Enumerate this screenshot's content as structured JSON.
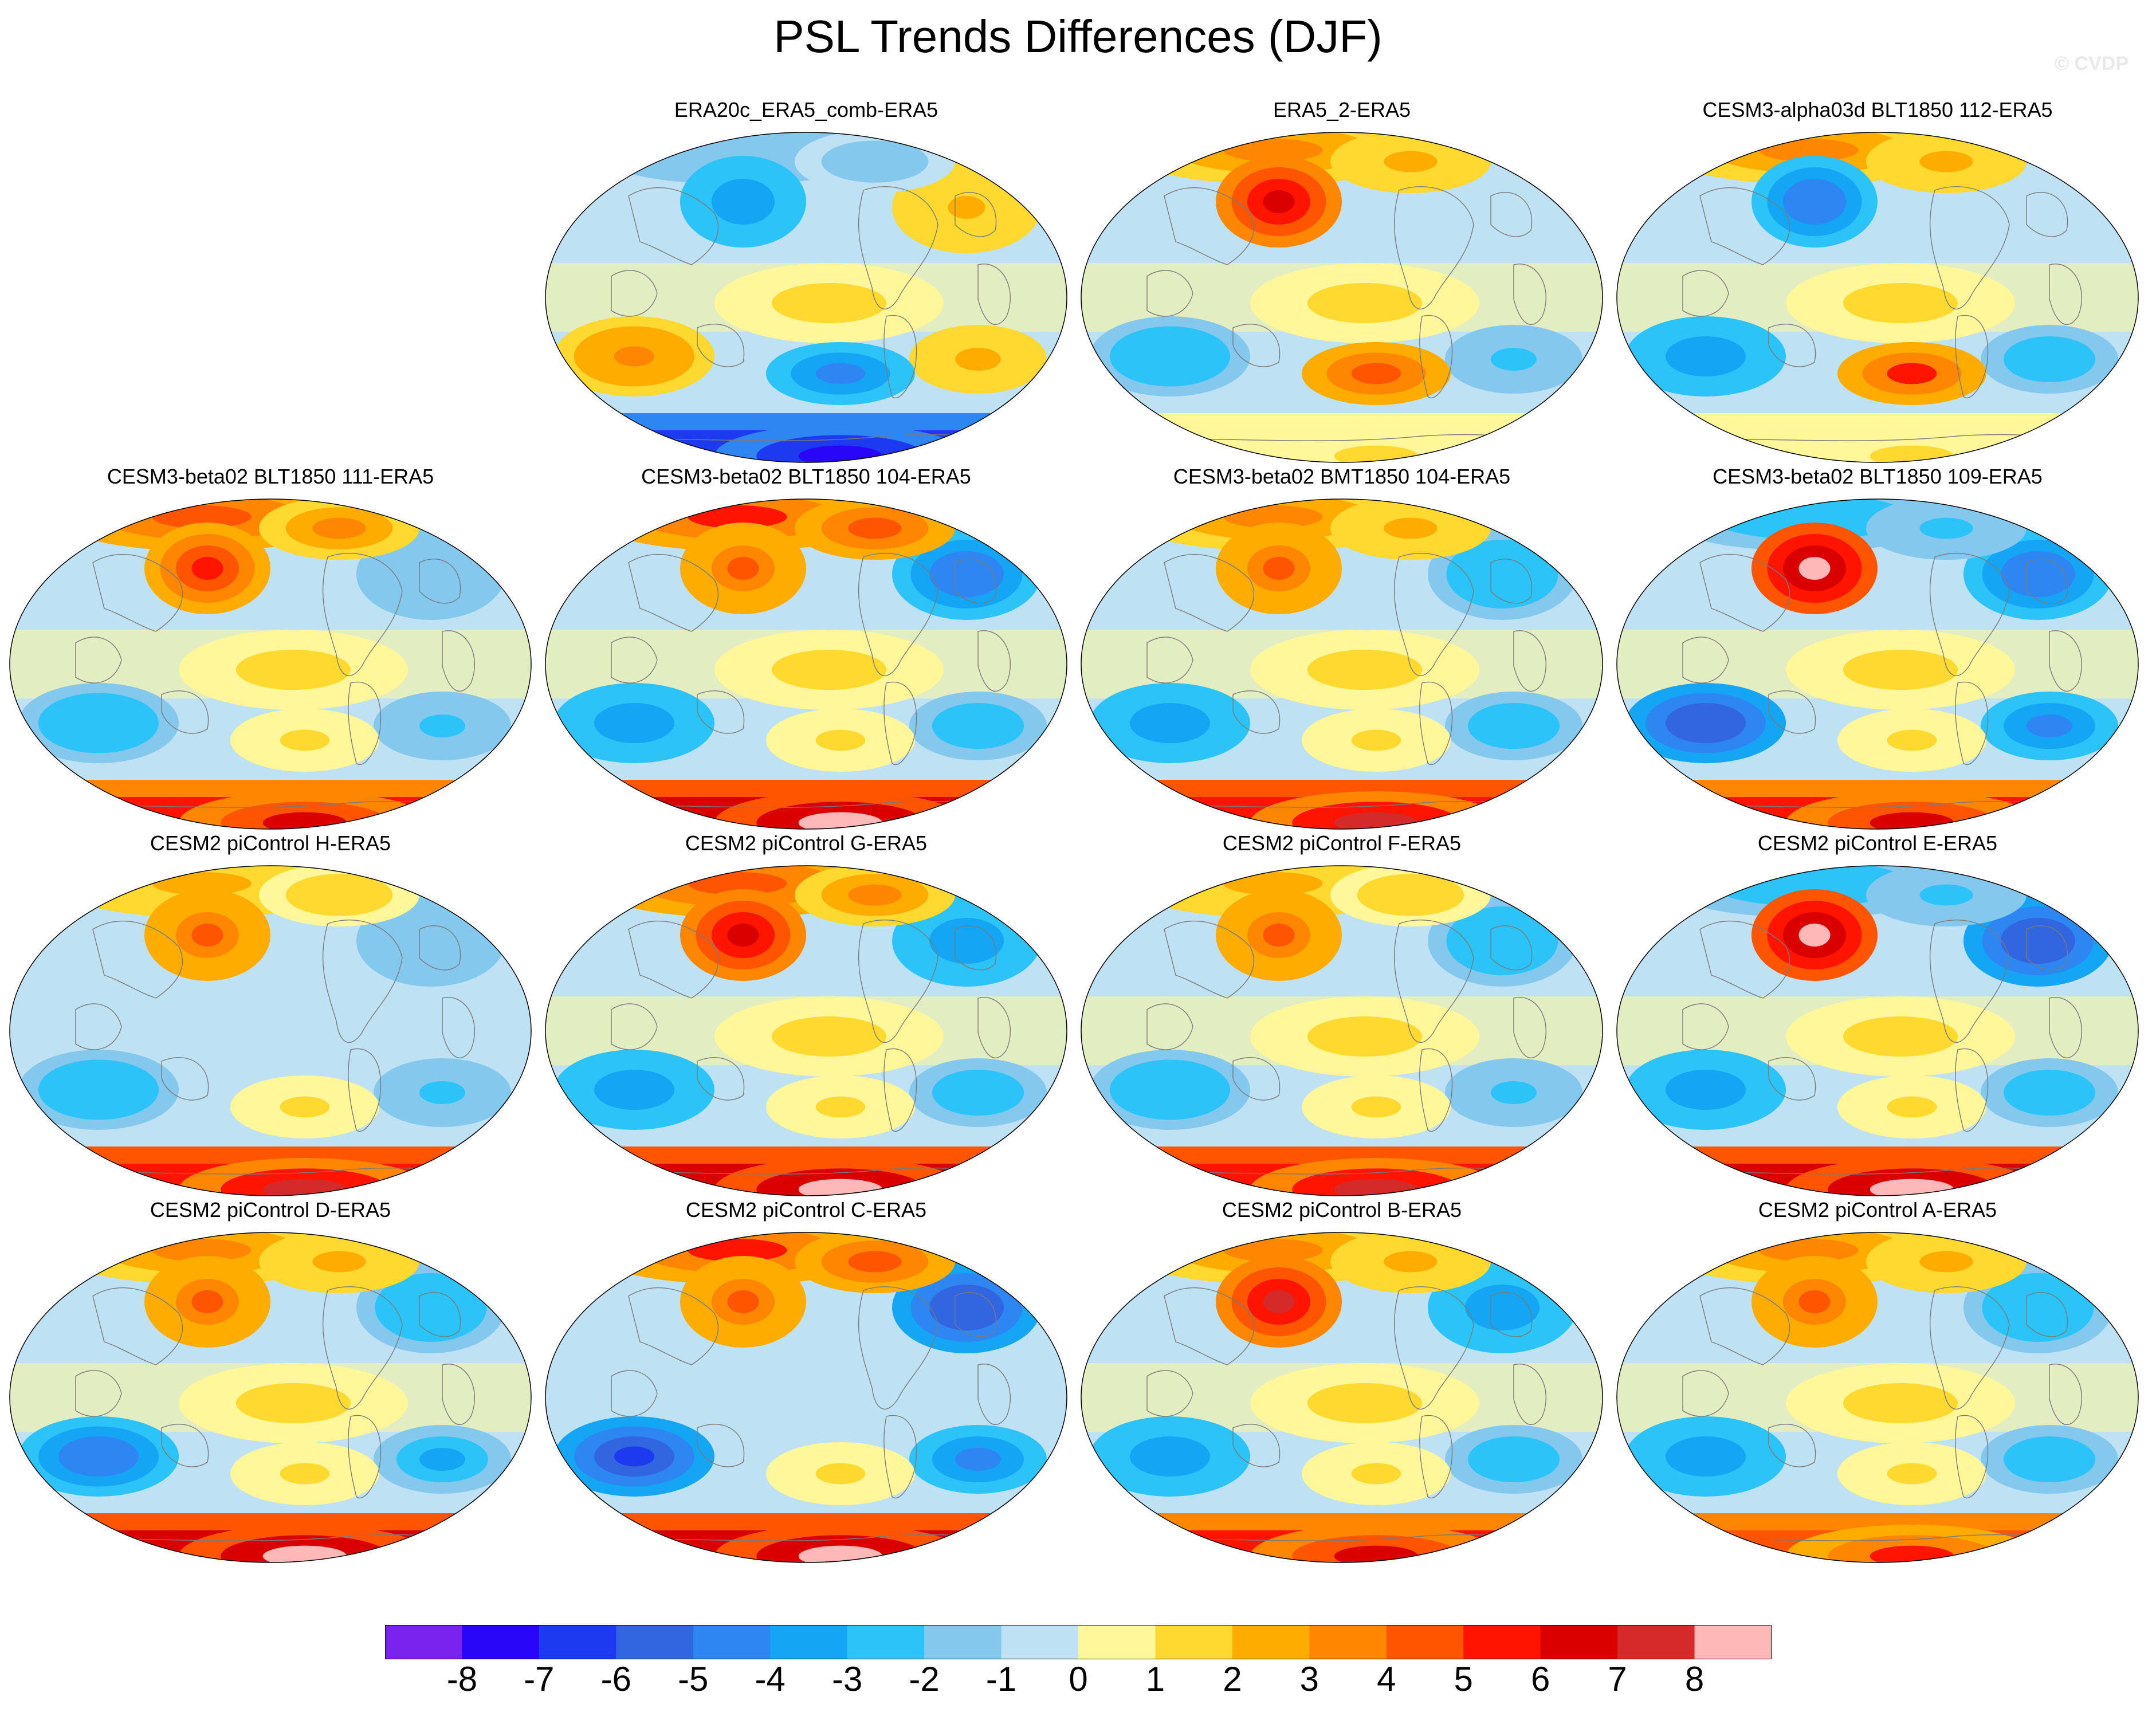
{
  "title": "PSL Trends Differences (DJF)",
  "watermark": "© CVDP",
  "chart_data": {
    "type": "heatmap",
    "title": "PSL Trends Differences (DJF)",
    "projection": "Robinson-like global maps, Pacific-centered",
    "panels": [
      {
        "title": "ERA20c_ERA5_comb-ERA5",
        "pattern": [
          -2,
          -4,
          2,
          1,
          3,
          -5,
          -8
        ]
      },
      {
        "title": "ERA5_2-ERA5",
        "pattern": [
          3,
          6,
          -1,
          1,
          -3,
          4,
          1
        ]
      },
      {
        "title": "CESM3-alpha03d BLT1850 112-ERA5",
        "pattern": [
          3,
          -5,
          -1,
          1,
          -4,
          5,
          1
        ]
      },
      {
        "title": "CESM3-beta02 BLT1850 111-ERA5",
        "pattern": [
          4,
          5,
          -2,
          1,
          -3,
          1,
          6
        ]
      },
      {
        "title": "CESM3-beta02 BLT1850 104-ERA5",
        "pattern": [
          5,
          4,
          -5,
          1,
          -4,
          1,
          8
        ]
      },
      {
        "title": "CESM3-beta02 BMT1850 104-ERA5",
        "pattern": [
          3,
          4,
          -3,
          1,
          -4,
          1,
          7
        ]
      },
      {
        "title": "CESM3-beta02 BLT1850 109-ERA5",
        "pattern": [
          -3,
          8,
          -5,
          1,
          -6,
          1,
          6
        ]
      },
      {
        "title": "CESM2 piControl H-ERA5",
        "pattern": [
          2,
          4,
          -2,
          -1,
          -3,
          1,
          7
        ]
      },
      {
        "title": "CESM2 piControl G-ERA5",
        "pattern": [
          4,
          6,
          -4,
          1,
          -4,
          1,
          8
        ]
      },
      {
        "title": "CESM2 piControl F-ERA5",
        "pattern": [
          2,
          4,
          -3,
          1,
          -3,
          1,
          7
        ]
      },
      {
        "title": "CESM2 piControl E-ERA5",
        "pattern": [
          -3,
          8,
          -6,
          1,
          -4,
          1,
          8
        ]
      },
      {
        "title": "CESM2 piControl D-ERA5",
        "pattern": [
          3,
          4,
          -3,
          1,
          -5,
          1,
          8
        ]
      },
      {
        "title": "CESM2 piControl C-ERA5",
        "pattern": [
          5,
          4,
          -6,
          -1,
          -7,
          1,
          8
        ]
      },
      {
        "title": "CESM2 piControl B-ERA5",
        "pattern": [
          3,
          7,
          -4,
          1,
          -4,
          1,
          6
        ]
      },
      {
        "title": "CESM2 piControl A-ERA5",
        "pattern": [
          3,
          4,
          -3,
          1,
          -4,
          1,
          5
        ]
      }
    ],
    "colorbar": {
      "levels": [
        -8,
        -7,
        -6,
        -5,
        -4,
        -3,
        -2,
        -1,
        0,
        1,
        2,
        3,
        4,
        5,
        6,
        7,
        8
      ],
      "labels": [
        "-8",
        "-7",
        "-6",
        "-5",
        "-4",
        "-3",
        "-2",
        "-1",
        "0",
        "1",
        "2",
        "3",
        "4",
        "5",
        "6",
        "7",
        "8"
      ],
      "colors": [
        "#7a22ee",
        "#2a06f8",
        "#1e3af0",
        "#3166e0",
        "#2d86f2",
        "#14a6f5",
        "#2cc3f8",
        "#84c8ee",
        "#bee1f4",
        "#fff799",
        "#ffd930",
        "#ffac00",
        "#ff8600",
        "#ff5400",
        "#ff1400",
        "#da0000",
        "#d42a2a",
        "#ffb8b8"
      ]
    }
  }
}
